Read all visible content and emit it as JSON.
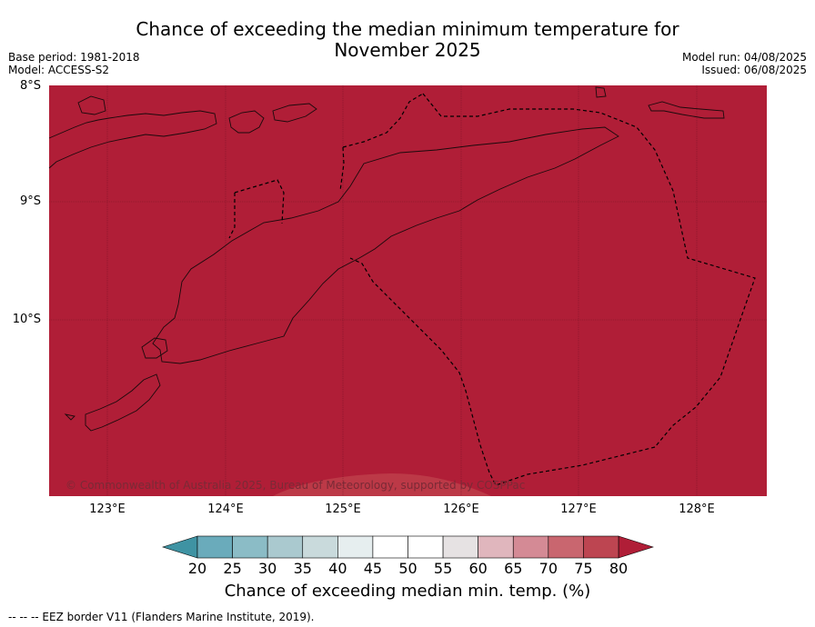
{
  "title_line1": "Chance of exceeding the median minimum temperature for",
  "title_line2": "November 2025",
  "meta_left": {
    "base_period": "Base period: 1981-2018",
    "model": "Model: ACCESS-S2"
  },
  "meta_right": {
    "model_run": "Model run: 04/08/2025",
    "issued": "Issued: 06/08/2025"
  },
  "axes": {
    "lat_labels": [
      "8°S",
      "9°S",
      "10°S"
    ],
    "lon_labels": [
      "123°E",
      "124°E",
      "125°E",
      "126°E",
      "127°E",
      "128°E"
    ]
  },
  "map_fill_color": "#b01e37",
  "copyright": "© Commonwealth of Australia 2025, Bureau of Meteorology, supported by COSPPac",
  "colorbar": {
    "ticks": [
      "20",
      "25",
      "30",
      "35",
      "40",
      "45",
      "50",
      "55",
      "60",
      "65",
      "70",
      "75",
      "80"
    ],
    "colors": [
      "#4d9fb0",
      "#6aabbb",
      "#8bbcc6",
      "#aac9cf",
      "#c9dadc",
      "#e6eeef",
      "#ffffff",
      "#ffffff",
      "#e6e2e3",
      "#e0b6bd",
      "#d48a95",
      "#c9666f",
      "#bd4551"
    ],
    "under_color": "#3f93a3",
    "over_color": "#b01e37",
    "label": "Chance of exceeding median min. temp. (%)"
  },
  "footnote": "--  --  -- EEZ border V11 (Flanders Marine Institute, 2019)."
}
